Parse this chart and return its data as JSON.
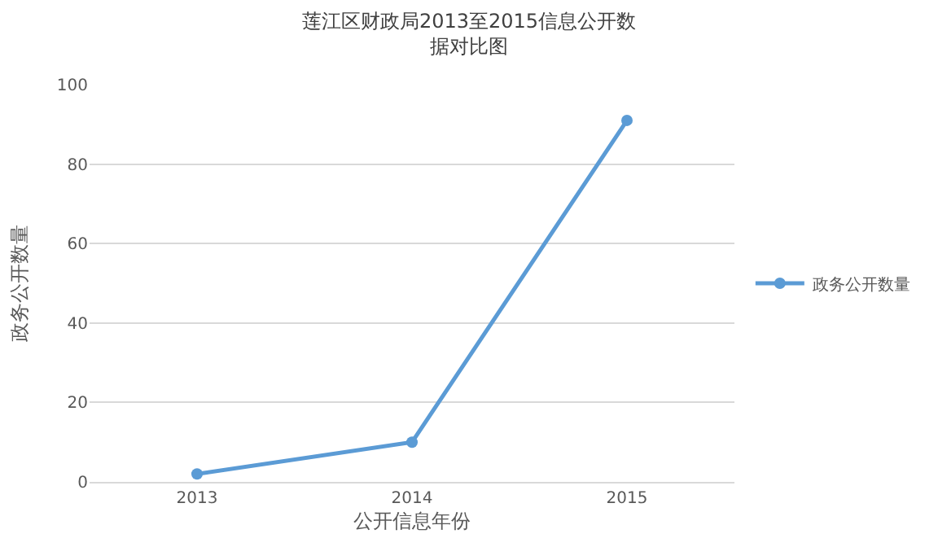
{
  "chart_data": {
    "type": "line",
    "title": "莲江区财政局2013至2015信息公开数据对比图",
    "xlabel": "公开信息年份",
    "ylabel": "政务公开数量",
    "categories": [
      "2013",
      "2014",
      "2015"
    ],
    "series": [
      {
        "name": "政务公开数量",
        "color": "#5b9bd5",
        "values": [
          2,
          10,
          91
        ]
      }
    ],
    "ylim": [
      0,
      100
    ],
    "yticks": [
      0,
      20,
      40,
      60,
      80,
      100
    ],
    "grid": "y",
    "legend": "right",
    "marker": "circle",
    "line_style": "solid"
  }
}
